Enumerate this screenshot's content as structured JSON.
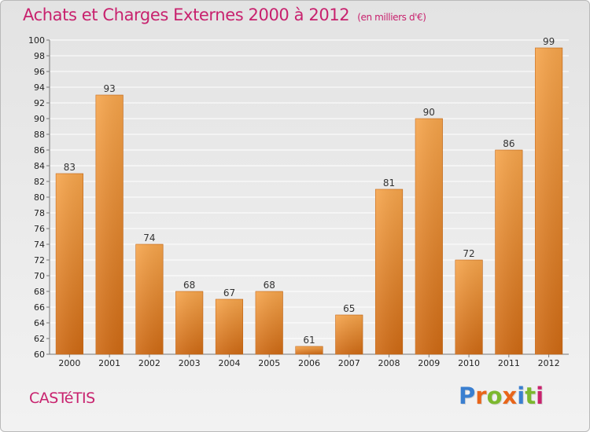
{
  "header": {
    "title": "Achats et Charges Externes 2000 à 2012",
    "unit": "(en milliers d'€)"
  },
  "footer": {
    "place": "CASTéTIS",
    "brand": "Proxiti",
    "brand_letters": [
      {
        "ch": "P",
        "color": "#3a7fd0"
      },
      {
        "ch": "r",
        "color": "#e8651a"
      },
      {
        "ch": "o",
        "color": "#7cb82f"
      },
      {
        "ch": "x",
        "color": "#e8651a"
      },
      {
        "ch": "i",
        "color": "#3a7fd0"
      },
      {
        "ch": "t",
        "color": "#7cb82f"
      },
      {
        "ch": "i",
        "color": "#c8226e"
      }
    ]
  },
  "colors": {
    "title": "#c8226e",
    "bar_light": "#f6a54c",
    "bar_dark": "#cf6a14",
    "grid": "#ffffff"
  },
  "chart_data": {
    "type": "bar",
    "title": "Achats et Charges Externes 2000 à 2012",
    "subtitle": "(en milliers d'€)",
    "xlabel": "",
    "ylabel": "",
    "categories": [
      "2000",
      "2001",
      "2002",
      "2003",
      "2004",
      "2005",
      "2006",
      "2007",
      "2008",
      "2009",
      "2010",
      "2011",
      "2012"
    ],
    "values": [
      83,
      93,
      74,
      68,
      67,
      68,
      61,
      65,
      81,
      90,
      72,
      86,
      99
    ],
    "ylim": [
      60,
      100
    ],
    "yticks": [
      60,
      62,
      64,
      66,
      68,
      70,
      72,
      74,
      76,
      78,
      80,
      82,
      84,
      86,
      88,
      90,
      92,
      94,
      96,
      98,
      100
    ],
    "grid": true,
    "data_labels": true
  }
}
